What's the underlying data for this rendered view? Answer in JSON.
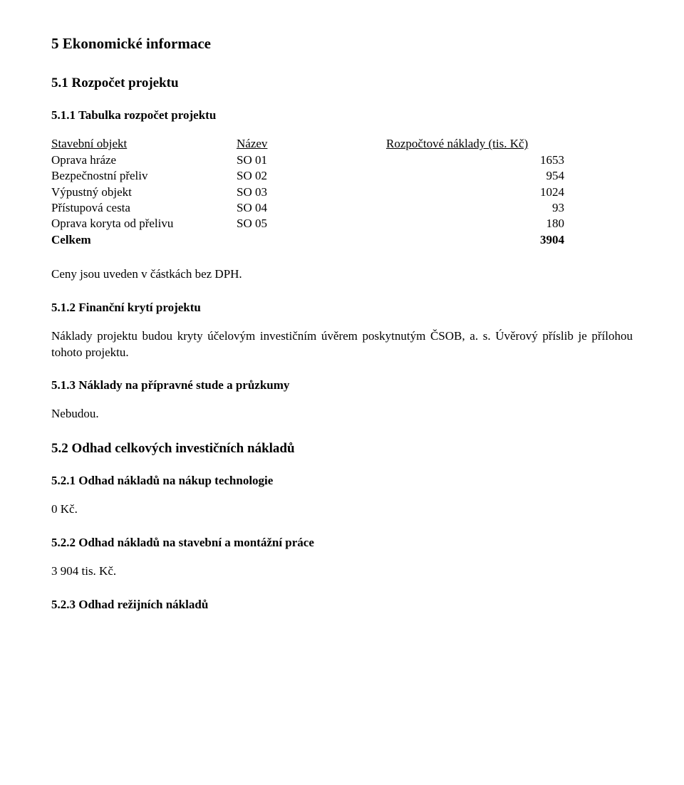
{
  "h_section": "5 Ekonomické informace",
  "h_5_1": "5.1 Rozpočet projektu",
  "h_5_1_1": "5.1.1 Tabulka rozpočet projektu",
  "budget": {
    "header": {
      "c1": "Stavební objekt",
      "c2": "Název",
      "c3": "Rozpočtové náklady (tis. Kč)"
    },
    "rows": [
      {
        "c1": "Oprava hráze",
        "c2": "SO 01",
        "c3": "1653"
      },
      {
        "c1": "Bezpečnostní přeliv",
        "c2": "SO 02",
        "c3": "954"
      },
      {
        "c1": "Výpustný objekt",
        "c2": "SO 03",
        "c3": "1024"
      },
      {
        "c1": "Přístupová cesta",
        "c2": "SO 04",
        "c3": "93"
      },
      {
        "c1": "Oprava koryta od přelivu",
        "c2": "SO 05",
        "c3": "180"
      }
    ],
    "sum": {
      "c1": "Celkem",
      "c2": "",
      "c3": "3904"
    }
  },
  "p_dph": "Ceny jsou uveden v částkách bez DPH.",
  "h_5_1_2": "5.1.2 Finanční krytí projektu",
  "p_5_1_2": "Náklady projektu budou kryty účelovým investičním úvěrem poskytnutým ČSOB, a. s. Úvěrový příslib je přílohou tohoto projektu.",
  "h_5_1_3": "5.1.3 Náklady na přípravné stude a průzkumy",
  "p_5_1_3": "Nebudou.",
  "h_5_2": "5.2 Odhad celkových investičních nákladů",
  "h_5_2_1": "5.2.1 Odhad nákladů na nákup technologie",
  "p_5_2_1": "0 Kč.",
  "h_5_2_2": "5.2.2 Odhad nákladů na stavební a montážní práce",
  "p_5_2_2": "3 904 tis. Kč.",
  "h_5_2_3": "5.2.3 Odhad režijních nákladů"
}
